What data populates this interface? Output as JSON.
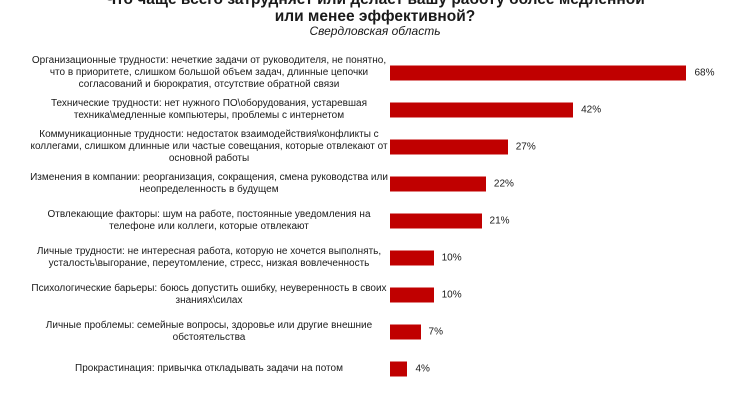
{
  "chart_data": {
    "type": "bar",
    "orientation": "horizontal",
    "title_line1": "Что чаще всего затрудняет или делает вашу работу более медленной",
    "title_line2": "или менее эффективной?",
    "subtitle": "Свердловская  область",
    "categories": [
      "Организационные трудности: нечеткие задачи от руководителя, не понятно, что в приоритете, слишком большой объем задач, длинные цепочки согласований и бюрократия, отсутствие обратной связи",
      "Технические трудности: нет нужного ПО\\оборудования, устаревшая техника\\медленные компьютеры, проблемы с интернетом",
      "Коммуникационные трудности: недостаток взаимодействия\\конфликты с коллегами, слишком длинные или частые совещания, которые отвлекают от основной работы",
      "Изменения в компании: реорганизация, сокращения, смена руководства или неопределенность в будущем",
      "Отвлекающие факторы: шум на работе, постоянные уведомления на телефоне или  коллеги, которые отвлекают",
      "Личные трудности: не интересная работа, которую не хочется выполнять, усталость\\выгорание, переутомление, стресс, низкая вовлеченность",
      "Психологические барьеры: боюсь допустить ошибку, неуверенность в своих знаниях\\силах",
      "Личные проблемы: семейные вопросы, здоровье или другие внешние обстоятельства",
      "Прокрастинация: привычка откладывать задачи на потом"
    ],
    "values": [
      68,
      42,
      27,
      22,
      21,
      10,
      10,
      7,
      4
    ],
    "value_labels": [
      "68%",
      "42%",
      "27%",
      "22%",
      "21%",
      "10%",
      "10%",
      "7%",
      "4%"
    ],
    "unit": "%",
    "bar_color": "#c00000",
    "grid": false,
    "legend": "none"
  }
}
